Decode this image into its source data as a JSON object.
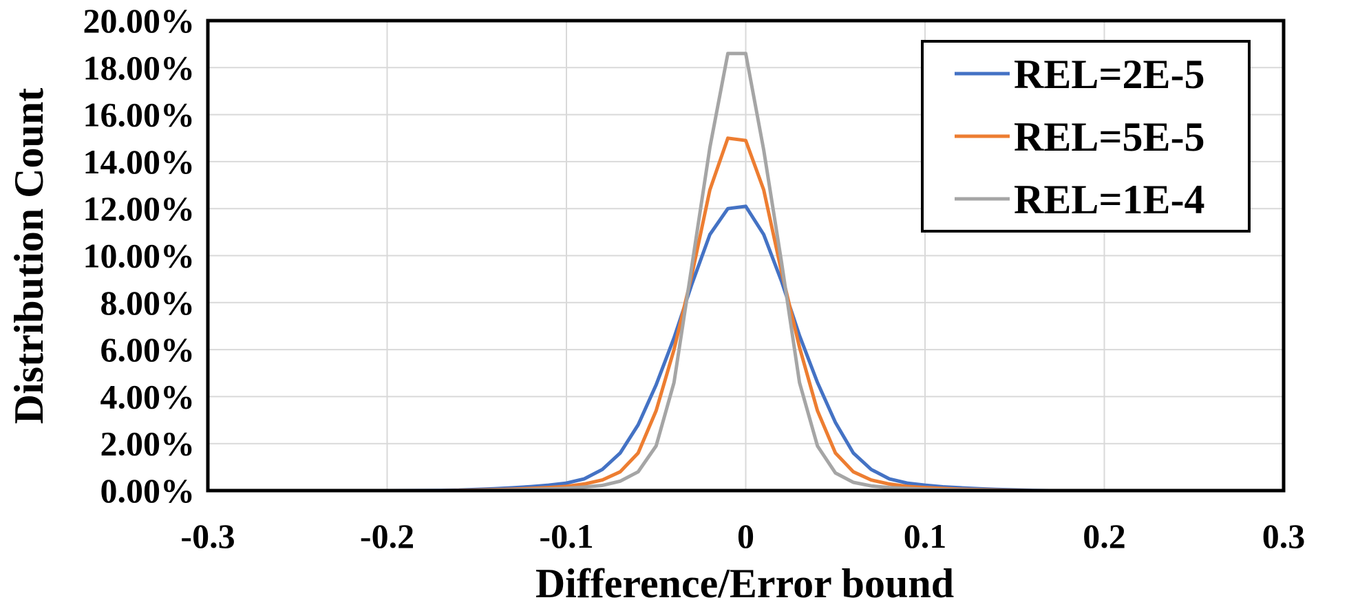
{
  "chart_data": {
    "type": "line",
    "title": "",
    "xlabel": "Difference/Error bound",
    "ylabel": "Distribution Count",
    "xlim": [
      -0.3,
      0.3
    ],
    "ylim": [
      0,
      20
    ],
    "xticks": [
      -0.3,
      -0.2,
      -0.1,
      0,
      0.1,
      0.2,
      0.3
    ],
    "xtick_labels": [
      "-0.3",
      "-0.2",
      "-0.1",
      "0",
      "0.1",
      "0.2",
      "0.3"
    ],
    "yticks": [
      0,
      2,
      4,
      6,
      8,
      10,
      12,
      14,
      16,
      18,
      20
    ],
    "ytick_labels": [
      "0.00%",
      "2.00%",
      "4.00%",
      "6.00%",
      "8.00%",
      "10.00%",
      "12.00%",
      "14.00%",
      "16.00%",
      "18.00%",
      "20.00%"
    ],
    "grid": true,
    "legend_position": "top-right",
    "x": [
      -0.3,
      -0.2,
      -0.17,
      -0.16,
      -0.15,
      -0.14,
      -0.13,
      -0.12,
      -0.11,
      -0.1,
      -0.09,
      -0.08,
      -0.07,
      -0.06,
      -0.05,
      -0.04,
      -0.03,
      -0.02,
      -0.01,
      0,
      0.01,
      0.02,
      0.03,
      0.04,
      0.05,
      0.06,
      0.07,
      0.08,
      0.09,
      0.1,
      0.11,
      0.12,
      0.13,
      0.14,
      0.15,
      0.16,
      0.17,
      0.2,
      0.3
    ],
    "series": [
      {
        "name": "REL=2E-5",
        "color": "#4472C4",
        "values": [
          0,
          0,
          0.01,
          0.02,
          0.05,
          0.08,
          0.12,
          0.17,
          0.23,
          0.32,
          0.5,
          0.9,
          1.6,
          2.8,
          4.5,
          6.5,
          8.8,
          10.9,
          12.0,
          12.1,
          10.9,
          8.9,
          6.6,
          4.6,
          2.9,
          1.6,
          0.9,
          0.5,
          0.32,
          0.23,
          0.16,
          0.12,
          0.08,
          0.05,
          0.03,
          0.01,
          0,
          0,
          0
        ]
      },
      {
        "name": "REL=5E-5",
        "color": "#ED7D31",
        "values": [
          0,
          0,
          0,
          0.01,
          0.02,
          0.04,
          0.06,
          0.09,
          0.13,
          0.18,
          0.28,
          0.45,
          0.8,
          1.6,
          3.4,
          6.0,
          9.2,
          12.8,
          15.0,
          14.9,
          12.8,
          9.3,
          6.1,
          3.4,
          1.6,
          0.8,
          0.45,
          0.28,
          0.18,
          0.13,
          0.09,
          0.06,
          0.04,
          0.02,
          0.01,
          0,
          0,
          0,
          0
        ]
      },
      {
        "name": "REL=1E-4",
        "color": "#A5A5A5",
        "values": [
          0,
          0,
          0,
          0,
          0.01,
          0.02,
          0.03,
          0.05,
          0.07,
          0.1,
          0.15,
          0.22,
          0.4,
          0.8,
          1.9,
          4.6,
          9.6,
          14.6,
          18.6,
          18.6,
          14.5,
          9.7,
          4.6,
          1.9,
          0.75,
          0.35,
          0.2,
          0.13,
          0.09,
          0.06,
          0.04,
          0.03,
          0.02,
          0.01,
          0,
          0,
          0,
          0,
          0
        ]
      }
    ]
  }
}
